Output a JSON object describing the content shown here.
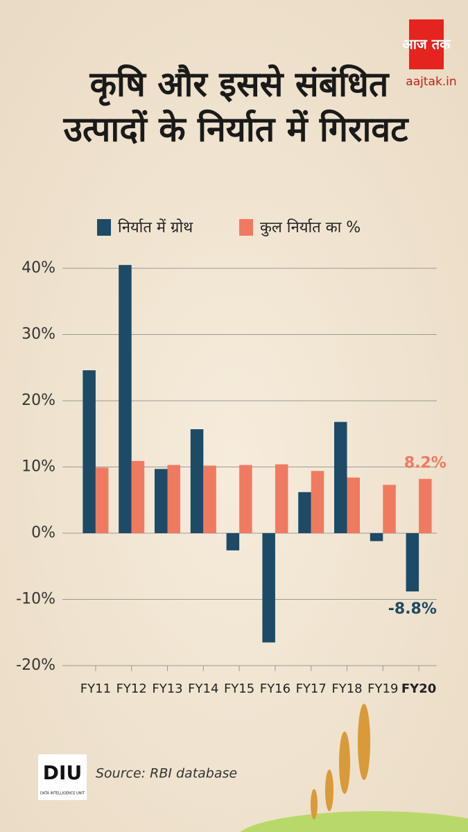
{
  "chart_data": {
    "type": "bar",
    "title": [
      "कृषि और इससे संबंधित",
      "उत्पादों के निर्यात में गिरावट"
    ],
    "categories": [
      "FY11",
      "FY12",
      "FY13",
      "FY14",
      "FY15",
      "FY16",
      "FY17",
      "FY18",
      "FY19",
      "FY20"
    ],
    "highlight_index": 9,
    "series": [
      {
        "name": "निर्यात में ग्रोथ",
        "color": "#1d4a66",
        "values": [
          24.6,
          40.5,
          9.7,
          15.7,
          -2.6,
          -16.5,
          6.2,
          16.8,
          -1.2,
          -8.8
        ],
        "value_labels": [
          null,
          null,
          null,
          null,
          null,
          null,
          null,
          null,
          null,
          "-8.8%"
        ]
      },
      {
        "name": "कुल निर्यात का %",
        "color": "#f07a60",
        "values": [
          9.9,
          10.9,
          10.3,
          10.2,
          10.3,
          10.4,
          9.4,
          8.4,
          7.3,
          8.2
        ],
        "value_labels": [
          null,
          null,
          null,
          null,
          null,
          null,
          null,
          null,
          null,
          "8.2%"
        ]
      }
    ],
    "ylim": [
      -20,
      40
    ],
    "yticks": [
      {
        "value": -20,
        "label": "-20%"
      },
      {
        "value": -10,
        "label": "-10%"
      },
      {
        "value": 0,
        "label": "0%"
      },
      {
        "value": 10,
        "label": "10%"
      },
      {
        "value": 20,
        "label": "20%"
      },
      {
        "value": 30,
        "label": "30%"
      },
      {
        "value": 40,
        "label": "40%"
      }
    ],
    "grid": true,
    "legend": "top"
  },
  "source": "Source: RBI database",
  "branding": {
    "logo": "आज तक",
    "site": "aajtak.in",
    "unit_logo": "DIU",
    "unit_name": "DATA INTELLIGENCE UNIT"
  }
}
